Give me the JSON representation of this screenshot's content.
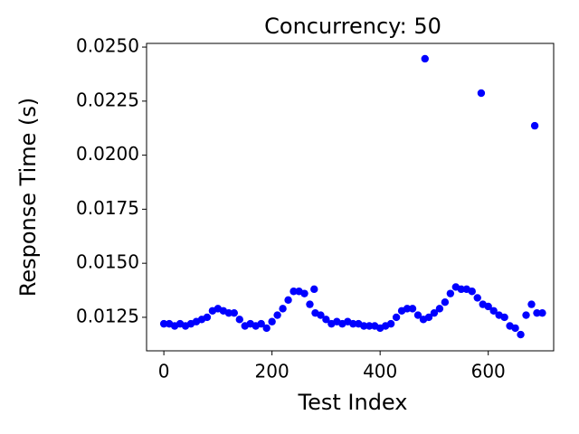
{
  "chart_data": {
    "type": "scatter",
    "title": "Concurrency: 50",
    "xlabel": "Test Index",
    "ylabel": "Response Time (s)",
    "color": "#0000ff",
    "x": [
      0,
      10,
      20,
      30,
      40,
      50,
      60,
      70,
      80,
      90,
      100,
      110,
      120,
      130,
      140,
      150,
      160,
      170,
      180,
      190,
      200,
      210,
      220,
      230,
      240,
      250,
      260,
      270,
      280,
      290,
      300,
      310,
      320,
      330,
      340,
      350,
      360,
      370,
      380,
      390,
      400,
      410,
      420,
      430,
      440,
      450,
      460,
      470,
      480,
      490,
      500,
      510,
      520,
      530,
      540,
      550,
      560,
      570,
      580,
      590,
      600,
      610,
      620,
      630,
      640,
      650,
      660,
      670,
      680,
      690,
      700,
      278,
      483,
      587,
      686
    ],
    "values": [
      0.0122,
      0.0122,
      0.0121,
      0.0122,
      0.0121,
      0.0122,
      0.0123,
      0.0124,
      0.0125,
      0.0128,
      0.0129,
      0.0128,
      0.0127,
      0.0127,
      0.0124,
      0.0121,
      0.0122,
      0.0121,
      0.0122,
      0.012,
      0.0123,
      0.0126,
      0.0129,
      0.0133,
      0.0137,
      0.0137,
      0.0136,
      0.0131,
      0.0127,
      0.0126,
      0.0124,
      0.0122,
      0.0123,
      0.0122,
      0.0123,
      0.0122,
      0.0122,
      0.0121,
      0.0121,
      0.0121,
      0.012,
      0.0121,
      0.0122,
      0.0125,
      0.0128,
      0.0129,
      0.0129,
      0.0126,
      0.0124,
      0.0125,
      0.0127,
      0.0129,
      0.0132,
      0.0136,
      0.0139,
      0.0138,
      0.0138,
      0.0137,
      0.0134,
      0.0131,
      0.013,
      0.0128,
      0.0126,
      0.0125,
      0.0121,
      0.012,
      0.0117,
      0.0126,
      0.0131,
      0.0127,
      0.0127,
      0.0138,
      0.02446,
      0.02287,
      0.02136
    ],
    "xlim": [
      -32,
      721
    ],
    "xticks": [
      0,
      200,
      400,
      600
    ],
    "ylim": [
      0.01095,
      0.02517
    ],
    "yticks": [
      {
        "value": 0.0125,
        "label": "0.0125"
      },
      {
        "value": 0.015,
        "label": "0.0150"
      },
      {
        "value": 0.0175,
        "label": "0.0175"
      },
      {
        "value": 0.02,
        "label": "0.0200"
      },
      {
        "value": 0.0225,
        "label": "0.0225"
      },
      {
        "value": 0.025,
        "label": "0.0250"
      }
    ]
  }
}
